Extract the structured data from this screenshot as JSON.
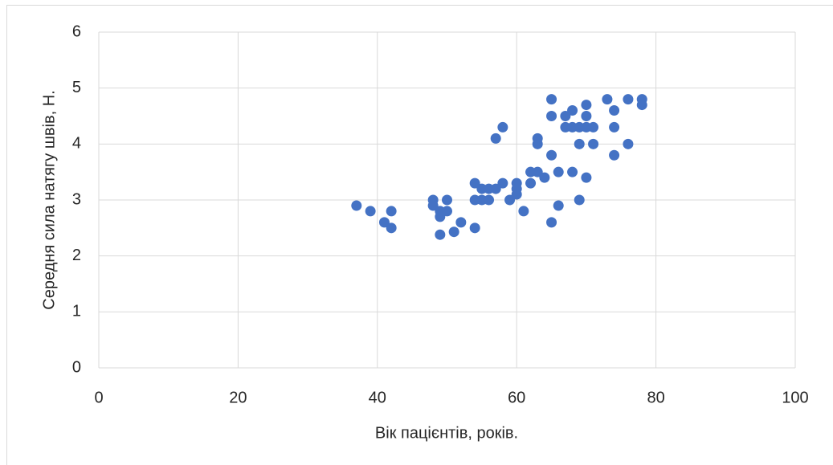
{
  "chart_data": {
    "type": "scatter",
    "x_label": "Вік пацієнтів, років.",
    "y_label": "Середня сила натягу швів, Н.",
    "color": "#4472c4",
    "x": [
      37,
      39,
      41,
      42,
      42,
      48,
      48,
      49,
      49,
      49,
      50,
      50,
      51,
      52,
      54,
      54,
      54,
      55,
      55,
      56,
      56,
      57,
      57,
      58,
      58,
      59,
      60,
      60,
      60,
      61,
      62,
      62,
      63,
      63,
      63,
      64,
      65,
      65,
      65,
      65,
      66,
      66,
      67,
      67,
      68,
      68,
      68,
      69,
      69,
      69,
      70,
      70,
      70,
      70,
      71,
      71,
      73,
      74,
      74,
      74,
      76,
      76,
      78,
      78
    ],
    "values": [
      2.9,
      2.8,
      2.6,
      2.8,
      2.5,
      3.0,
      2.9,
      2.8,
      2.7,
      2.38,
      3.0,
      2.8,
      2.43,
      2.6,
      3.3,
      3.0,
      2.5,
      3.2,
      3.0,
      3.2,
      3.0,
      3.2,
      4.1,
      3.3,
      4.3,
      3.0,
      3.1,
      3.2,
      3.3,
      2.8,
      3.5,
      3.3,
      3.5,
      4.0,
      4.1,
      3.4,
      4.8,
      4.5,
      3.8,
      2.6,
      3.5,
      2.9,
      4.5,
      4.3,
      4.6,
      4.3,
      3.5,
      4.3,
      4.0,
      3.0,
      4.7,
      4.5,
      4.3,
      3.4,
      4.3,
      4.0,
      4.8,
      4.6,
      4.3,
      3.8,
      4.8,
      4.0,
      4.8,
      4.7
    ],
    "xlim": [
      0,
      100
    ],
    "xticks": [
      0,
      20,
      40,
      60,
      80,
      100
    ],
    "ylim": [
      0,
      6
    ],
    "yticks": [
      0,
      1,
      2,
      3,
      4,
      5,
      6
    ],
    "grid": true
  }
}
